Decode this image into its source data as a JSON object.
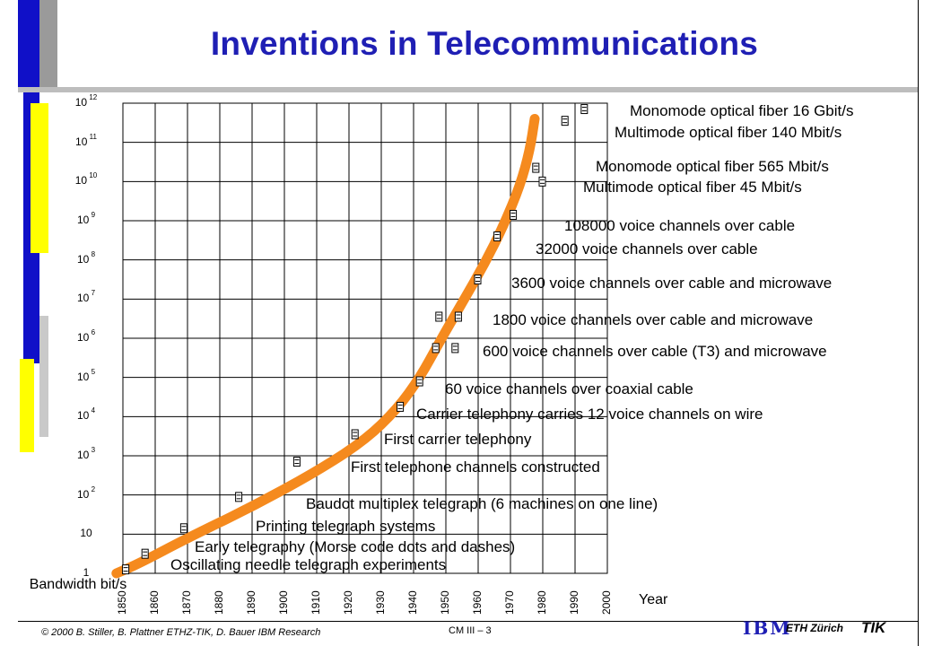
{
  "title": "Inventions in Telecommunications",
  "colors": {
    "title": "#1f1fb4",
    "curve": "#f58a1e",
    "blue_bar": "#1010c8",
    "yellow_bar": "#ffff00",
    "grid": "#000000"
  },
  "chart_data": {
    "type": "line",
    "ylabel": "Bandwidth bit/s",
    "xlabel": "Year",
    "x_ticks": [
      "1850",
      "1860",
      "1870",
      "1880",
      "1890",
      "1900",
      "1910",
      "1920",
      "1930",
      "1940",
      "1950",
      "1960",
      "1970",
      "1980",
      "1990",
      "2000"
    ],
    "y_ticks": [
      {
        "base": "1",
        "exp": ""
      },
      {
        "base": "10",
        "exp": ""
      },
      {
        "base": "10",
        "exp": "2"
      },
      {
        "base": "10",
        "exp": "3"
      },
      {
        "base": "10",
        "exp": "4"
      },
      {
        "base": "10",
        "exp": "5"
      },
      {
        "base": "10",
        "exp": "6"
      },
      {
        "base": "10",
        "exp": "7"
      },
      {
        "base": "10",
        "exp": "8"
      },
      {
        "base": "10",
        "exp": "9"
      },
      {
        "base": "10",
        "exp": "10"
      },
      {
        "base": "10",
        "exp": "11"
      },
      {
        "base": "10",
        "exp": "12"
      }
    ],
    "xlim": [
      1850,
      2000
    ],
    "ylim_log10": [
      0,
      12
    ],
    "y_scale": "log",
    "grid": true,
    "curve_points": [
      [
        1848,
        0.0
      ],
      [
        1855,
        0.25
      ],
      [
        1870,
        0.9
      ],
      [
        1890,
        1.7
      ],
      [
        1910,
        2.6
      ],
      [
        1925,
        3.4
      ],
      [
        1935,
        4.2
      ],
      [
        1942,
        5.0
      ],
      [
        1948,
        5.9
      ],
      [
        1955,
        6.9
      ],
      [
        1962,
        7.9
      ],
      [
        1968,
        8.9
      ],
      [
        1973,
        9.9
      ],
      [
        1976,
        10.8
      ],
      [
        1977.5,
        11.6
      ]
    ],
    "markers": [
      [
        1851,
        0.1
      ],
      [
        1857,
        0.5
      ],
      [
        1869,
        1.15
      ],
      [
        1886,
        1.95
      ],
      [
        1904,
        2.85
      ],
      [
        1922,
        3.55
      ],
      [
        1936,
        4.25
      ],
      [
        1942,
        4.9
      ],
      [
        1947,
        5.75
      ],
      [
        1953,
        5.75
      ],
      [
        1948,
        6.55
      ],
      [
        1954,
        6.55
      ],
      [
        1960,
        7.5
      ],
      [
        1966,
        8.6
      ],
      [
        1971,
        9.15
      ],
      [
        1978,
        10.35
      ],
      [
        1980,
        10.0
      ],
      [
        1987,
        11.55
      ],
      [
        1993,
        11.85
      ]
    ],
    "annotations": [
      {
        "text": "Monomode optical fiber 16 Gbit/s"
      },
      {
        "text": "Multimode optical fiber 140 Mbit/s"
      },
      {
        "text": "Monomode optical fiber 565 Mbit/s"
      },
      {
        "text": "Multimode optical fiber 45 Mbit/s"
      },
      {
        "text": "108000 voice channels over cable"
      },
      {
        "text": "32000 voice channels over cable"
      },
      {
        "text": "3600 voice channels over cable and microwave"
      },
      {
        "text": "1800 voice channels over cable and microwave"
      },
      {
        "text": "600 voice channels over cable (T3) and microwave"
      },
      {
        "text": "60 voice channels over coaxial cable"
      },
      {
        "text": "Carrier telephony carries 12 voice channels on wire"
      },
      {
        "text": "First carrier telephony"
      },
      {
        "text": "First telephone channels constructed"
      },
      {
        "text": "Baudot multiplex telegraph (6 machines on one line)"
      },
      {
        "text": "Printing telegraph systems"
      },
      {
        "text": "Early telegraphy (Morse code dots and dashes)"
      },
      {
        "text": "Oscillating needle telegraph experiments"
      }
    ]
  },
  "footer": {
    "copyright": "© 2000  B. Stiller, B. Plattner ETHZ-TIK, D. Bauer IBM Research",
    "page": "CM III  – 3",
    "ibm": "IBM",
    "eth": "ETH Zürich",
    "tik": "TIK"
  }
}
